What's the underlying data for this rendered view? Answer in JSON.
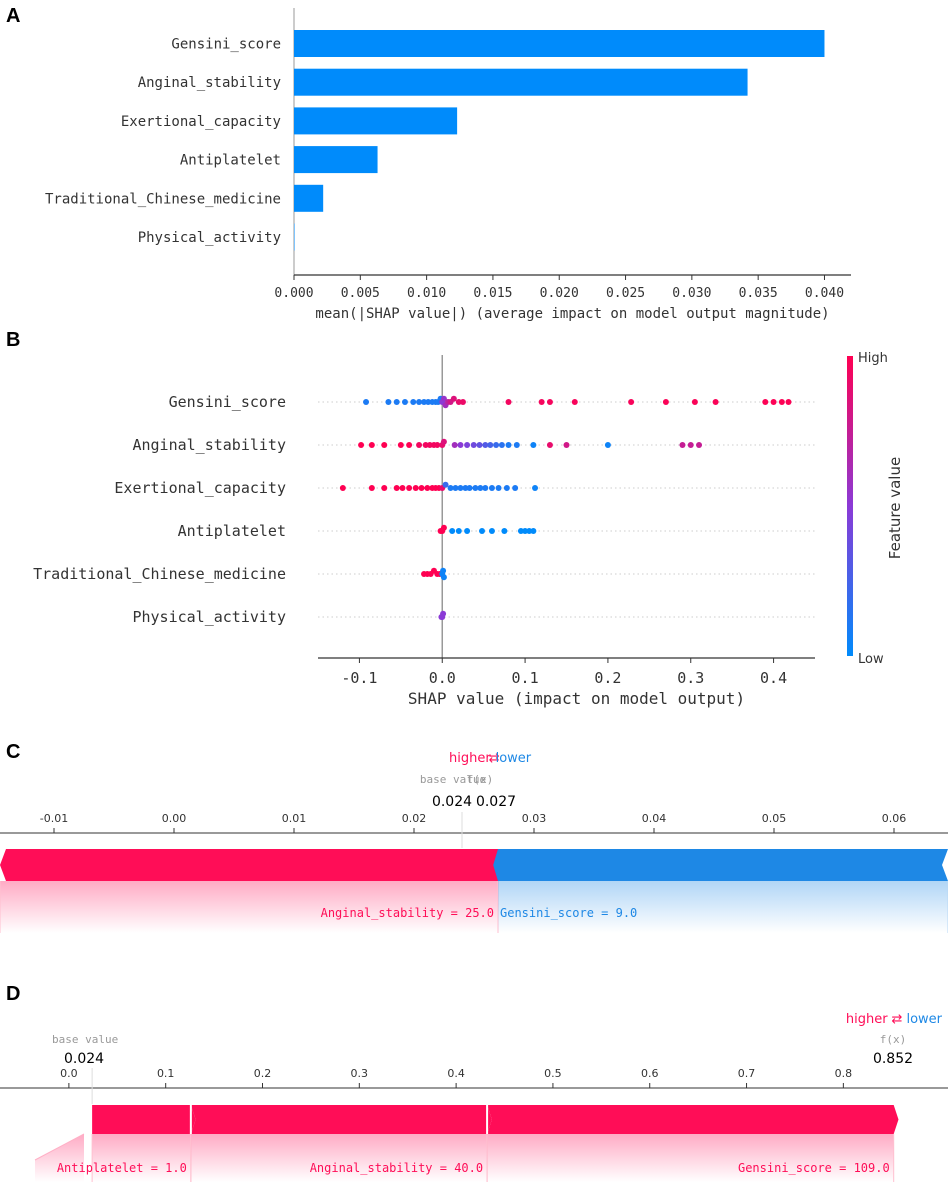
{
  "colors": {
    "red": "#ff0d57",
    "blue": "#1e88e5",
    "bar": "#008bfb",
    "purple": "#a01cbe",
    "grey": "#999999",
    "dark": "#333333"
  },
  "chart_data": [
    {
      "panel": "A",
      "type": "bar",
      "orientation": "horizontal",
      "categories": [
        "Gensini_score",
        "Anginal_stability",
        "Exertional_capacity",
        "Antiplatelet",
        "Traditional_Chinese_medicine",
        "Physical_activity"
      ],
      "values": [
        0.04,
        0.0342,
        0.0123,
        0.0063,
        0.0022,
        0.0
      ],
      "xlim": [
        0.0,
        0.042
      ],
      "xticks": [
        "0.000",
        "0.005",
        "0.010",
        "0.015",
        "0.020",
        "0.025",
        "0.030",
        "0.035",
        "0.040"
      ],
      "xlabel": "mean(|SHAP value|) (average impact on model output magnitude)"
    },
    {
      "panel": "B",
      "type": "scatter",
      "subtype": "beeswarm",
      "categories": [
        "Gensini_score",
        "Anginal_stability",
        "Exertional_capacity",
        "Antiplatelet",
        "Traditional_Chinese_medicine",
        "Physical_activity"
      ],
      "xlim": [
        -0.15,
        0.45
      ],
      "xticks": [
        "-0.1",
        "0.0",
        "0.1",
        "0.2",
        "0.3",
        "0.4"
      ],
      "xlabel": "SHAP value (impact on model output)",
      "colorbar": {
        "label": "Feature value",
        "high": "High",
        "low": "Low"
      },
      "points": [
        [
          [
            -0.092,
            0.1
          ],
          [
            -0.065,
            0.1
          ],
          [
            -0.055,
            0.1
          ],
          [
            -0.045,
            0.1
          ],
          [
            -0.035,
            0.1
          ],
          [
            -0.028,
            0.1
          ],
          [
            -0.022,
            0.1
          ],
          [
            -0.017,
            0.1
          ],
          [
            -0.012,
            0.1
          ],
          [
            -0.008,
            0.1
          ],
          [
            -0.005,
            0.1
          ],
          [
            -0.002,
            0.1
          ],
          [
            0.0,
            0.5
          ],
          [
            0.002,
            0.55
          ],
          [
            0.004,
            0.6
          ],
          [
            0.007,
            0.7
          ],
          [
            0.01,
            0.8
          ],
          [
            0.014,
            0.85
          ],
          [
            0.02,
            0.9
          ],
          [
            0.025,
            0.92
          ],
          [
            0.08,
            0.95
          ],
          [
            0.12,
            0.96
          ],
          [
            0.13,
            0.96
          ],
          [
            0.16,
            0.97
          ],
          [
            0.228,
            0.97
          ],
          [
            0.27,
            0.98
          ],
          [
            0.305,
            0.98
          ],
          [
            0.33,
            0.98
          ],
          [
            0.39,
            0.99
          ],
          [
            0.4,
            0.99
          ],
          [
            0.41,
            0.99
          ],
          [
            0.418,
            0.99
          ]
        ],
        [
          [
            -0.098,
            1.0
          ],
          [
            -0.085,
            1.0
          ],
          [
            -0.07,
            1.0
          ],
          [
            -0.05,
            1.0
          ],
          [
            -0.04,
            1.0
          ],
          [
            -0.028,
            0.95
          ],
          [
            -0.02,
            0.95
          ],
          [
            -0.015,
            0.95
          ],
          [
            -0.01,
            0.95
          ],
          [
            -0.006,
            0.95
          ],
          [
            0.0,
            0.9
          ],
          [
            0.002,
            0.85
          ],
          [
            0.015,
            0.6
          ],
          [
            0.022,
            0.5
          ],
          [
            0.03,
            0.45
          ],
          [
            0.038,
            0.4
          ],
          [
            0.045,
            0.35
          ],
          [
            0.052,
            0.3
          ],
          [
            0.058,
            0.25
          ],
          [
            0.065,
            0.2
          ],
          [
            0.072,
            0.15
          ],
          [
            0.08,
            0.1
          ],
          [
            0.09,
            0.1
          ],
          [
            0.11,
            0.05
          ],
          [
            0.13,
            0.9
          ],
          [
            0.15,
            0.8
          ],
          [
            0.2,
            0.05
          ],
          [
            0.29,
            0.75
          ],
          [
            0.3,
            0.75
          ],
          [
            0.31,
            0.75
          ]
        ],
        [
          [
            -0.12,
            1.0
          ],
          [
            -0.085,
            1.0
          ],
          [
            -0.07,
            1.0
          ],
          [
            -0.055,
            1.0
          ],
          [
            -0.048,
            1.0
          ],
          [
            -0.04,
            1.0
          ],
          [
            -0.032,
            1.0
          ],
          [
            -0.025,
            1.0
          ],
          [
            -0.018,
            1.0
          ],
          [
            -0.012,
            1.0
          ],
          [
            -0.008,
            1.0
          ],
          [
            -0.004,
            1.0
          ],
          [
            0.0,
            0.9
          ],
          [
            0.004,
            0.2
          ],
          [
            0.01,
            0.1
          ],
          [
            0.016,
            0.1
          ],
          [
            0.022,
            0.1
          ],
          [
            0.028,
            0.1
          ],
          [
            0.033,
            0.1
          ],
          [
            0.04,
            0.1
          ],
          [
            0.046,
            0.1
          ],
          [
            0.052,
            0.1
          ],
          [
            0.06,
            0.1
          ],
          [
            0.068,
            0.1
          ],
          [
            0.078,
            0.1
          ],
          [
            0.088,
            0.1
          ],
          [
            0.112,
            0.05
          ]
        ],
        [
          [
            -0.002,
            1.0
          ],
          [
            0.0,
            1.0
          ],
          [
            0.002,
            1.0
          ],
          [
            0.012,
            0.0
          ],
          [
            0.02,
            0.0
          ],
          [
            0.03,
            0.0
          ],
          [
            0.048,
            0.0
          ],
          [
            0.06,
            0.0
          ],
          [
            0.075,
            0.0
          ],
          [
            0.095,
            0.0
          ],
          [
            0.1,
            0.0
          ],
          [
            0.105,
            0.0
          ],
          [
            0.11,
            0.0
          ]
        ],
        [
          [
            -0.022,
            1.0
          ],
          [
            -0.018,
            1.0
          ],
          [
            -0.014,
            1.0
          ],
          [
            -0.01,
            1.0
          ],
          [
            -0.006,
            1.0
          ],
          [
            -0.003,
            1.0
          ],
          [
            0.0,
            0.05
          ],
          [
            0.001,
            0.05
          ],
          [
            0.002,
            0.05
          ]
        ],
        [
          [
            -0.001,
            0.5
          ],
          [
            0.0,
            0.5
          ],
          [
            0.001,
            0.5
          ]
        ]
      ]
    },
    {
      "panel": "C",
      "type": "force",
      "legend": {
        "higher": "higher",
        "arrow": "⇄",
        "lower": "lower"
      },
      "base_value_label": "base value",
      "fx_label": "f(x)",
      "base_value_text": "0.024",
      "fx_text": "0.027",
      "base_value": 0.024,
      "fx": 0.027,
      "xlim": [
        -0.0145,
        0.0645
      ],
      "xticks": [
        "-0.01",
        "0.00",
        "0.01",
        "0.02",
        "0.03",
        "0.04",
        "0.05",
        "0.06"
      ],
      "xtick_values": [
        -0.01,
        0.0,
        0.01,
        0.02,
        0.03,
        0.04,
        0.05,
        0.06
      ],
      "positive": [
        {
          "label": "Anginal_stability = 25.0",
          "from": -0.0145,
          "to": 0.027
        }
      ],
      "negative": [
        {
          "label": "Gensini_score = 9.0",
          "from": 0.027,
          "to": 0.0645
        }
      ]
    },
    {
      "panel": "D",
      "type": "force",
      "legend": {
        "higher": "higher",
        "arrow": "⇄",
        "lower": "lower"
      },
      "base_value_label": "base value",
      "fx_label": "f(x)",
      "base_value_text": "0.024",
      "fx_text": "0.852",
      "base_value": 0.024,
      "fx": 0.852,
      "xlim": [
        -0.035,
        0.905
      ],
      "xticks": [
        "0.0",
        "0.1",
        "0.2",
        "0.3",
        "0.4",
        "0.5",
        "0.6",
        "0.7",
        "0.8"
      ],
      "xtick_values": [
        0.0,
        0.1,
        0.2,
        0.3,
        0.4,
        0.5,
        0.6,
        0.7,
        0.8
      ],
      "positive": [
        {
          "label": "Antiplatelet = 1.0",
          "from": 0.024,
          "to": 0.126
        },
        {
          "label": "Anginal_stability = 40.0",
          "from": 0.126,
          "to": 0.432
        },
        {
          "label": "Gensini_score = 109.0",
          "from": 0.432,
          "to": 0.852
        }
      ]
    }
  ],
  "panel_labels": [
    "A",
    "B",
    "C",
    "D"
  ]
}
